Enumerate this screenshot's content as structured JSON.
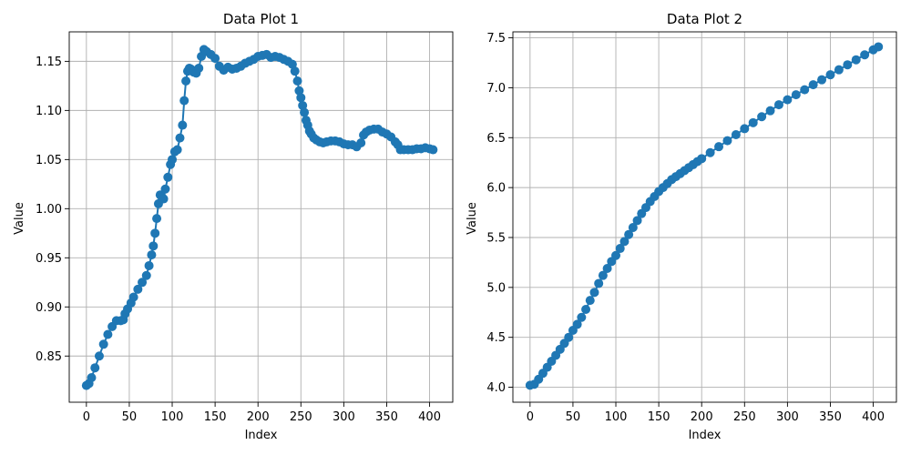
{
  "chart_data": [
    {
      "type": "line",
      "title": "Data Plot 1",
      "xlabel": "Index",
      "ylabel": "Value",
      "xlim": [
        -20,
        427
      ],
      "ylim": [
        0.803,
        1.18
      ],
      "xticks": [
        0,
        50,
        100,
        150,
        200,
        250,
        300,
        350,
        400
      ],
      "yticks": [
        0.85,
        0.9,
        0.95,
        1.0,
        1.05,
        1.1,
        1.15
      ],
      "ytick_labels": [
        "0.85",
        "0.90",
        "0.95",
        "1.00",
        "1.05",
        "1.10",
        "1.15"
      ],
      "grid": true,
      "marker": "circle",
      "color": "#1f77b4",
      "series": [
        {
          "x": [
            0,
            3,
            6,
            10,
            15,
            20,
            25,
            30,
            35,
            40,
            43,
            45,
            48,
            52,
            55,
            60,
            65,
            70,
            73,
            76,
            78,
            80,
            82,
            84,
            86,
            88,
            90,
            92,
            95,
            98,
            100,
            103,
            106,
            109,
            112,
            114,
            116,
            118,
            120,
            122,
            125,
            128,
            131,
            134,
            137,
            140,
            145,
            150,
            155,
            160,
            165,
            170,
            175,
            180,
            185,
            190,
            195,
            200,
            205,
            210,
            215,
            220,
            225,
            230,
            235,
            240,
            243,
            246,
            248,
            250,
            252,
            254,
            256,
            258,
            260,
            262,
            265,
            268,
            272,
            276,
            280,
            285,
            290,
            295,
            300,
            305,
            310,
            315,
            320,
            323,
            326,
            330,
            335,
            340,
            345,
            350,
            355,
            360,
            363,
            366,
            370,
            375,
            380,
            385,
            390,
            395,
            400,
            404
          ],
          "values": [
            0.82,
            0.822,
            0.828,
            0.838,
            0.85,
            0.862,
            0.872,
            0.88,
            0.886,
            0.886,
            0.887,
            0.893,
            0.898,
            0.904,
            0.91,
            0.918,
            0.925,
            0.932,
            0.942,
            0.953,
            0.962,
            0.975,
            0.99,
            1.005,
            1.014,
            1.012,
            1.01,
            1.02,
            1.032,
            1.045,
            1.05,
            1.058,
            1.06,
            1.072,
            1.085,
            1.11,
            1.13,
            1.14,
            1.143,
            1.142,
            1.139,
            1.138,
            1.143,
            1.155,
            1.162,
            1.16,
            1.157,
            1.153,
            1.145,
            1.141,
            1.144,
            1.142,
            1.143,
            1.145,
            1.148,
            1.15,
            1.152,
            1.155,
            1.156,
            1.157,
            1.154,
            1.155,
            1.154,
            1.152,
            1.15,
            1.147,
            1.14,
            1.13,
            1.12,
            1.113,
            1.105,
            1.098,
            1.09,
            1.085,
            1.079,
            1.076,
            1.072,
            1.07,
            1.068,
            1.067,
            1.068,
            1.069,
            1.069,
            1.068,
            1.066,
            1.065,
            1.065,
            1.063,
            1.067,
            1.075,
            1.078,
            1.08,
            1.081,
            1.081,
            1.078,
            1.076,
            1.073,
            1.068,
            1.065,
            1.06,
            1.06,
            1.06,
            1.06,
            1.061,
            1.061,
            1.062,
            1.061,
            1.06
          ]
        }
      ]
    },
    {
      "type": "line",
      "title": "Data Plot 2",
      "xlabel": "Index",
      "ylabel": "Value",
      "xlim": [
        -20,
        427
      ],
      "ylim": [
        3.85,
        7.56
      ],
      "xticks": [
        0,
        50,
        100,
        150,
        200,
        250,
        300,
        350,
        400
      ],
      "yticks": [
        4.0,
        4.5,
        5.0,
        5.5,
        6.0,
        6.5,
        7.0,
        7.5
      ],
      "ytick_labels": [
        "4.0",
        "4.5",
        "5.0",
        "5.5",
        "6.0",
        "6.5",
        "7.0",
        "7.5"
      ],
      "grid": true,
      "marker": "circle",
      "color": "#1f77b4",
      "series": [
        {
          "x": [
            0,
            5,
            10,
            15,
            20,
            25,
            30,
            35,
            40,
            45,
            50,
            55,
            60,
            65,
            70,
            75,
            80,
            85,
            90,
            95,
            100,
            105,
            110,
            115,
            120,
            125,
            130,
            135,
            140,
            145,
            150,
            155,
            160,
            165,
            170,
            175,
            180,
            185,
            190,
            195,
            200,
            210,
            220,
            230,
            240,
            250,
            260,
            270,
            280,
            290,
            300,
            310,
            320,
            330,
            340,
            350,
            360,
            370,
            380,
            390,
            400,
            406
          ],
          "values": [
            4.02,
            4.03,
            4.08,
            4.14,
            4.2,
            4.26,
            4.32,
            4.38,
            4.44,
            4.5,
            4.57,
            4.63,
            4.7,
            4.78,
            4.87,
            4.95,
            5.04,
            5.12,
            5.19,
            5.26,
            5.32,
            5.39,
            5.46,
            5.53,
            5.6,
            5.67,
            5.74,
            5.8,
            5.86,
            5.91,
            5.96,
            6.0,
            6.04,
            6.08,
            6.11,
            6.14,
            6.17,
            6.2,
            6.23,
            6.26,
            6.29,
            6.35,
            6.41,
            6.47,
            6.53,
            6.59,
            6.65,
            6.71,
            6.77,
            6.83,
            6.88,
            6.93,
            6.98,
            7.03,
            7.08,
            7.13,
            7.18,
            7.23,
            7.28,
            7.33,
            7.38,
            7.41
          ]
        }
      ]
    }
  ]
}
